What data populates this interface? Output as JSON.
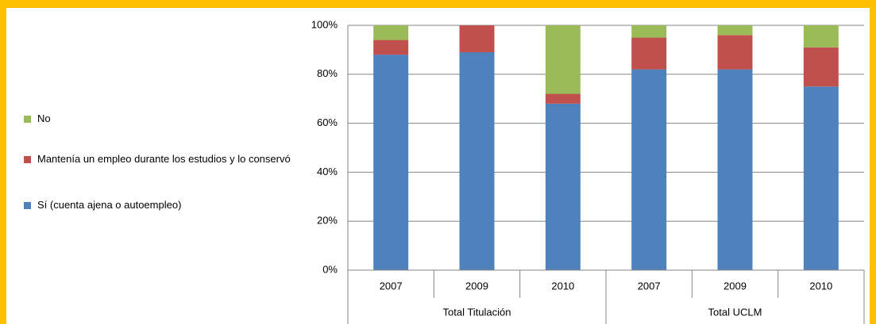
{
  "chart_data": {
    "type": "stacked_bar",
    "groups": [
      {
        "name": "Total Titulación",
        "categories": [
          "2007",
          "2009",
          "2010"
        ]
      },
      {
        "name": "Total UCLM",
        "categories": [
          "2007",
          "2009",
          "2010"
        ]
      }
    ],
    "series": [
      {
        "name": "Sí (cuenta ajena o autoempleo)",
        "color": "#4f81bd",
        "values": [
          88,
          89,
          68,
          82,
          82,
          75
        ]
      },
      {
        "name": "Mantenía un empleo durante los estudios y lo conservó",
        "color": "#c0504d",
        "values": [
          6,
          11,
          4,
          13,
          14,
          16
        ]
      },
      {
        "name": "No",
        "color": "#9bbb59",
        "values": [
          6,
          0,
          28,
          5,
          4,
          9
        ]
      }
    ],
    "ylim": [
      0,
      100
    ],
    "yticks": [
      {
        "value": 0,
        "label": "0%"
      },
      {
        "value": 20,
        "label": "20%"
      },
      {
        "value": 40,
        "label": "40%"
      },
      {
        "value": 60,
        "label": "60%"
      },
      {
        "value": 80,
        "label": "80%"
      },
      {
        "value": 100,
        "label": "100%"
      }
    ],
    "grid": true,
    "legend": "left"
  }
}
